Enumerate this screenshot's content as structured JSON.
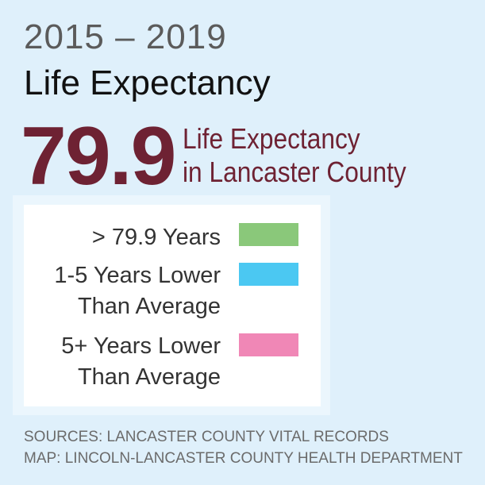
{
  "header": {
    "years": "2015 – 2019",
    "title": "Life Expectancy"
  },
  "headline": {
    "value": "79.9",
    "label_line1": "Life Expectancy",
    "label_line2": "in Lancaster County"
  },
  "legend": {
    "items": [
      {
        "label_line1": "> 79.9 Years",
        "label_line2": "",
        "color": "#8ac87a"
      },
      {
        "label_line1": "1-5 Years Lower",
        "label_line2": "Than Average",
        "color": "#4bc8f2"
      },
      {
        "label_line1": "5+ Years Lower",
        "label_line2": "Than Average",
        "color": "#f087b6"
      }
    ]
  },
  "footer": {
    "sources": "SOURCES: LANCASTER COUNTY VITAL RECORDS",
    "map": "MAP: LINCOLN-LANCASTER COUNTY HEALTH DEPARTMENT"
  }
}
